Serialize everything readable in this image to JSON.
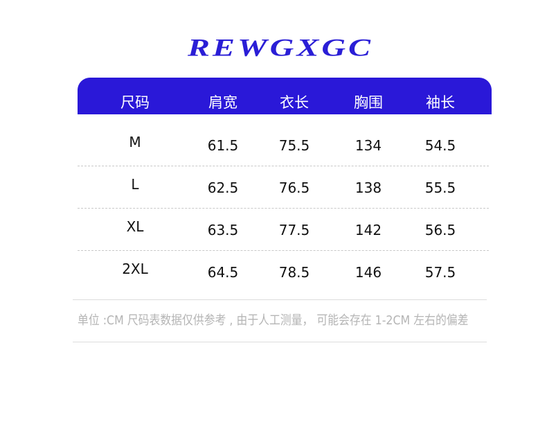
{
  "header": {
    "title": "REWGXGC"
  },
  "table": {
    "columns": [
      "尺码",
      "肩宽",
      "衣长",
      "胸围",
      "袖长"
    ],
    "rows": [
      [
        "M",
        "61.5",
        "75.5",
        "134",
        "54.5"
      ],
      [
        "L",
        "62.5",
        "76.5",
        "138",
        "55.5"
      ],
      [
        "XL",
        "63.5",
        "77.5",
        "142",
        "56.5"
      ],
      [
        "2XL",
        "64.5",
        "78.5",
        "146",
        "57.5"
      ]
    ]
  },
  "note": "单位 :CM 尺码表数据仅供参考 , 由于人工测量，  可能会存在 1-2CM 左右的偏差"
}
